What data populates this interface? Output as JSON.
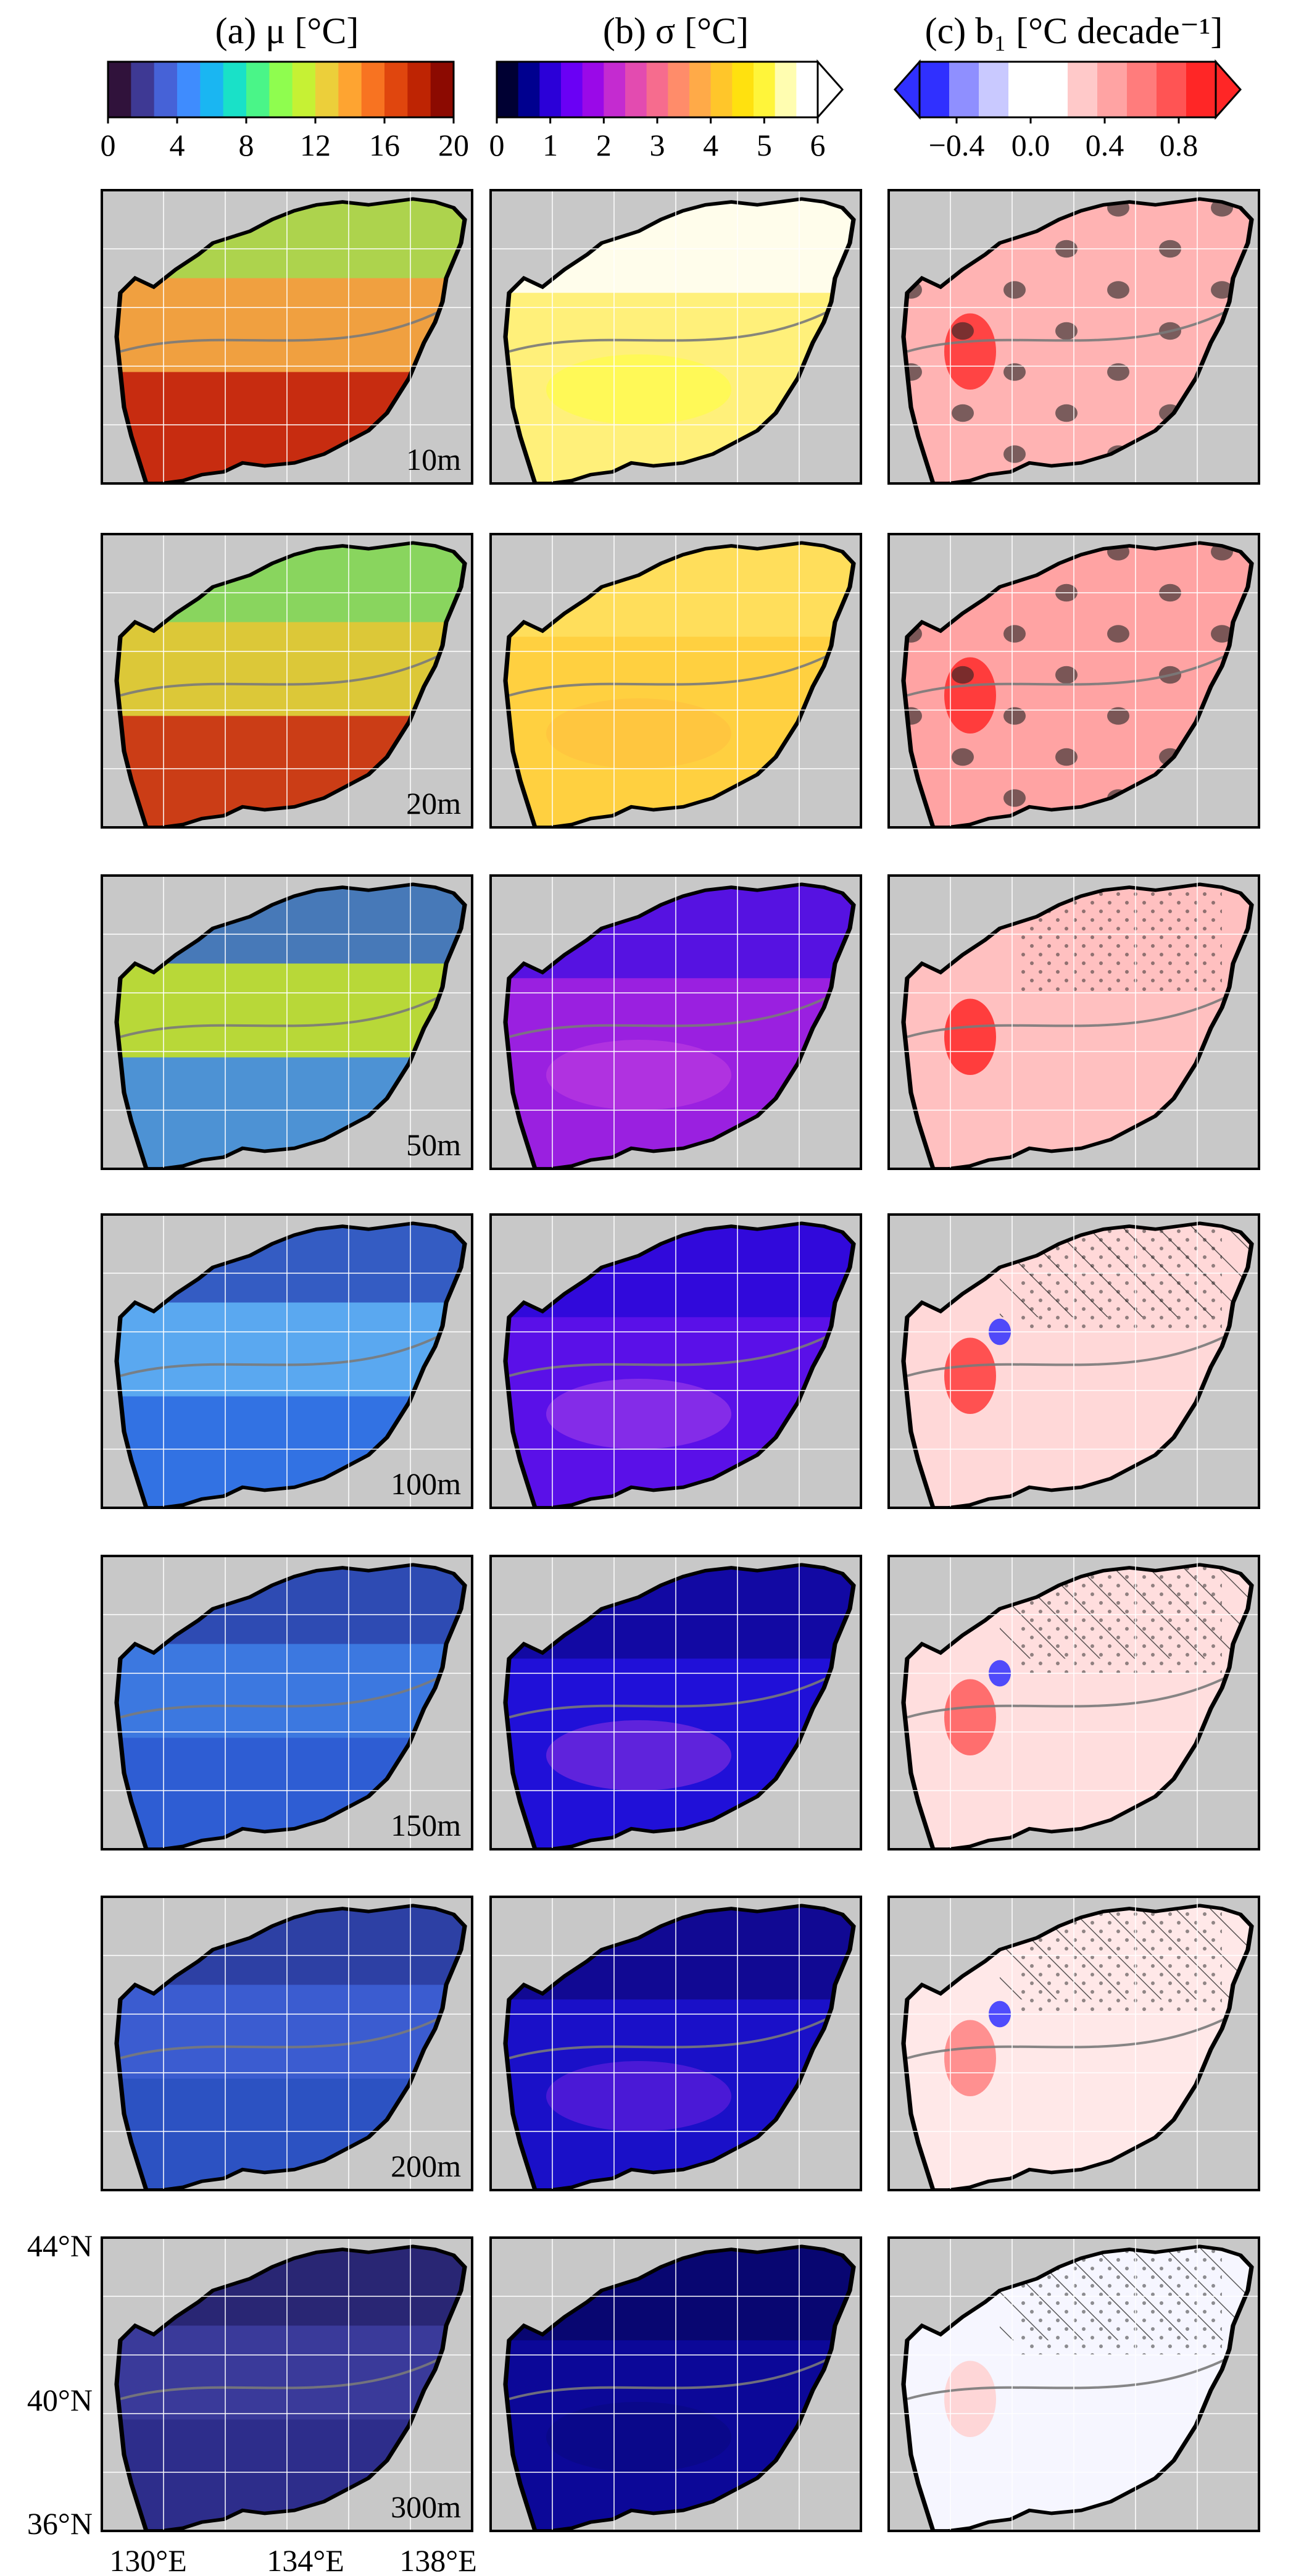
{
  "columns": [
    {
      "id": "a",
      "title": "(a) μ [°C]",
      "cmap": "jet"
    },
    {
      "id": "b",
      "title": "(b) σ [°C]",
      "cmap": "gnuplot"
    },
    {
      "id": "c",
      "title": "(c) b₁ [°C decade⁻¹]",
      "cmap": "bwr"
    }
  ],
  "colorbars": [
    {
      "id": "mu",
      "ticks": [
        "0",
        "4",
        "8",
        "12",
        "16",
        "20"
      ],
      "range": [
        0,
        20
      ],
      "extend": "none",
      "colors": [
        "#30123b",
        "#3e3994",
        "#4662d7",
        "#3f8cfe",
        "#1ab6f2",
        "#19e1c8",
        "#4af588",
        "#8ffd4f",
        "#c6f134",
        "#eccf3a",
        "#fea431",
        "#f87321",
        "#e0460e",
        "#be2403",
        "#8c0a01"
      ]
    },
    {
      "id": "sigma",
      "ticks": [
        "0",
        "1",
        "2",
        "3",
        "4",
        "5",
        "6"
      ],
      "range": [
        0,
        6
      ],
      "extend": "max",
      "colors": [
        "#000033",
        "#00008f",
        "#2b00d8",
        "#6a00f5",
        "#9a09e8",
        "#c42bd0",
        "#e34bb0",
        "#f66c8e",
        "#ff8c6a",
        "#ffaa48",
        "#ffc62a",
        "#ffe10f",
        "#fff53a",
        "#fffdb0",
        "#ffffff"
      ]
    },
    {
      "id": "b1",
      "ticks": [
        "−0.4",
        "0.0",
        "0.4",
        "0.8"
      ],
      "tick_values": [
        -0.4,
        0.0,
        0.4,
        0.8
      ],
      "range": [
        -0.6,
        1.0
      ],
      "extend": "both",
      "colors": [
        "#3030ff",
        "#8f8fff",
        "#c9c9ff",
        "#ffffff",
        "#ffffff",
        "#ffc9c9",
        "#ffa3a3",
        "#ff7c7c",
        "#ff5454",
        "#ff2626"
      ]
    }
  ],
  "rows": [
    {
      "depth_label": "10m"
    },
    {
      "depth_label": "20m"
    },
    {
      "depth_label": "50m"
    },
    {
      "depth_label": "100m"
    },
    {
      "depth_label": "150m"
    },
    {
      "depth_label": "200m"
    },
    {
      "depth_label": "300m"
    }
  ],
  "axes": {
    "lat_labels": [
      "44°N",
      "40°N",
      "36°N"
    ],
    "lon_labels": [
      "130°E",
      "134°E",
      "138°E"
    ]
  },
  "panel_fills": {
    "a": [
      "#f0a040",
      "#dcc838",
      "#b8d838",
      "#5aa8f0",
      "#3c78e0",
      "#3b5cd0",
      "#3a3a9a"
    ],
    "b": [
      "#fff07a",
      "#ffd040",
      "#9a20e0",
      "#5a10e8",
      "#2010d8",
      "#1a10c8",
      "#0c0898"
    ],
    "c": [
      "#ffb3b3",
      "#ffa3a3",
      "#ffc0c0",
      "#ffd8d8",
      "#ffdede",
      "#ffe8e8",
      "#f6f6ff"
    ]
  }
}
